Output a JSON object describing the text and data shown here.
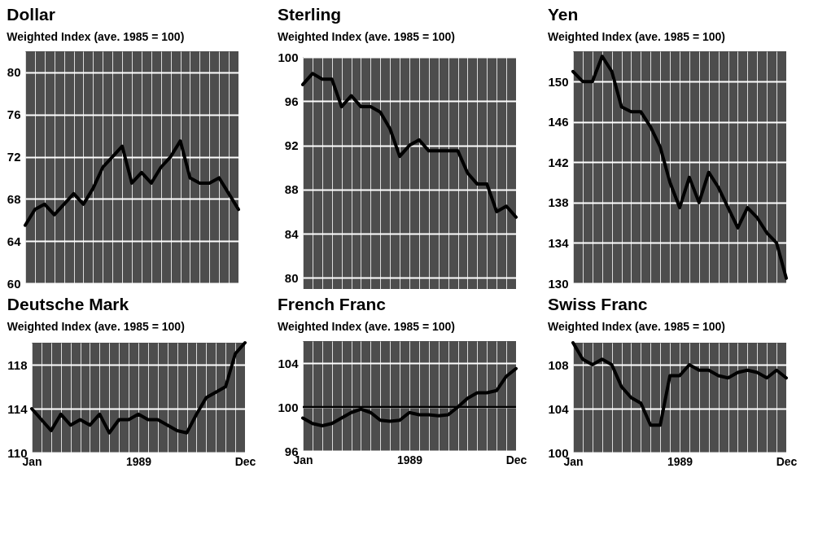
{
  "chart_data": [
    {
      "type": "line",
      "title": "Dollar",
      "subtitle": "Weighted Index (ave. 1985 = 100)",
      "categories": [
        null,
        null,
        null,
        null,
        null,
        null,
        null,
        null,
        null,
        null,
        null,
        null,
        null,
        null,
        null,
        null,
        null,
        null,
        null,
        null,
        null,
        null,
        null
      ],
      "series": [
        {
          "color": "#000000",
          "values": [
            65.5,
            67,
            67.5,
            66.5,
            67.5,
            68.5,
            67.5,
            69,
            71,
            72,
            73,
            69.5,
            70.5,
            69.5,
            71,
            72,
            73.5,
            70,
            69.5,
            69.5,
            70,
            68.5,
            67
          ]
        }
      ],
      "ylim": [
        60,
        82
      ],
      "yticks": [
        60,
        64,
        68,
        72,
        76,
        80
      ],
      "tick_labels": "y",
      "grid": true
    },
    {
      "type": "line",
      "title": "Sterling",
      "subtitle": "Weighted Index (ave. 1985 = 100)",
      "categories": [
        null,
        null,
        null,
        null,
        null,
        null,
        null,
        null,
        null,
        null,
        null,
        null,
        null,
        null,
        null,
        null,
        null,
        null,
        null,
        null,
        null,
        null,
        null
      ],
      "series": [
        {
          "color": "#000000",
          "values": [
            97.5,
            98.5,
            98,
            98,
            95.5,
            96.5,
            95.5,
            95.5,
            95,
            93.5,
            91,
            92,
            92.5,
            91.5,
            91.5,
            91.5,
            91.5,
            89.5,
            88.5,
            88.5,
            86,
            86.5,
            85.5
          ]
        }
      ],
      "ylim": [
        79,
        100
      ],
      "yticks": [
        80,
        84,
        88,
        92,
        96,
        100
      ],
      "tick_labels": "y",
      "grid": true
    },
    {
      "type": "line",
      "title": "Yen",
      "subtitle": "Weighted Index (ave. 1985 = 100)",
      "categories": [
        null,
        null,
        null,
        null,
        null,
        null,
        null,
        null,
        null,
        null,
        null,
        null,
        null,
        null,
        null,
        null,
        null,
        null,
        null,
        null,
        null,
        null,
        null
      ],
      "series": [
        {
          "color": "#000000",
          "values": [
            151,
            150,
            150,
            152.5,
            151,
            147.5,
            147,
            147,
            145.5,
            143.5,
            140,
            137.5,
            140.5,
            138,
            141,
            139.5,
            137.5,
            135.5,
            137.5,
            136.5,
            135,
            134,
            130.5
          ]
        }
      ],
      "ylim": [
        130,
        153
      ],
      "yticks": [
        130,
        134,
        138,
        142,
        146,
        150
      ],
      "tick_labels": "y",
      "grid": true
    },
    {
      "type": "line",
      "title": "Deutsche Mark",
      "subtitle": "Weighted Index (ave. 1985 = 100)",
      "categories": [
        "Jan",
        null,
        null,
        null,
        null,
        null,
        null,
        null,
        null,
        null,
        null,
        "1989",
        null,
        null,
        null,
        null,
        null,
        null,
        null,
        null,
        null,
        null,
        "Dec"
      ],
      "series": [
        {
          "color": "#000000",
          "values": [
            114,
            113,
            112,
            113.5,
            112.5,
            113,
            112.5,
            113.5,
            111.8,
            113,
            113,
            113.5,
            113,
            113,
            112.5,
            112,
            111.8,
            113.5,
            115,
            115.5,
            116,
            119,
            120
          ]
        }
      ],
      "ylim": [
        110,
        120
      ],
      "yticks": [
        110,
        114,
        118
      ],
      "grid": true
    },
    {
      "type": "line",
      "title": "French Franc",
      "subtitle": "Weighted Index (ave. 1985 = 100)",
      "categories": [
        "Jan",
        null,
        null,
        null,
        null,
        null,
        null,
        null,
        null,
        null,
        null,
        "1989",
        null,
        null,
        null,
        null,
        null,
        null,
        null,
        null,
        null,
        null,
        "Dec"
      ],
      "series": [
        {
          "color": "#000000",
          "values": [
            99,
            98.5,
            98.3,
            98.5,
            99,
            99.5,
            99.8,
            99.5,
            98.8,
            98.7,
            98.8,
            99.5,
            99.3,
            99.3,
            99.2,
            99.3,
            100,
            100.8,
            101.3,
            101.3,
            101.5,
            102.8,
            103.5
          ]
        }
      ],
      "ylim": [
        96,
        106
      ],
      "yticks": [
        96,
        100,
        104
      ],
      "grid": true,
      "ref_lines": [
        {
          "axis": "y",
          "value": 100,
          "color": "#000000"
        }
      ]
    },
    {
      "type": "line",
      "title": "Swiss Franc",
      "subtitle": "Weighted Index (ave. 1985 = 100)",
      "categories": [
        "Jan",
        null,
        null,
        null,
        null,
        null,
        null,
        null,
        null,
        null,
        null,
        "1989",
        null,
        null,
        null,
        null,
        null,
        null,
        null,
        null,
        null,
        null,
        "Dec"
      ],
      "series": [
        {
          "color": "#000000",
          "values": [
            110,
            108.5,
            108,
            108.5,
            108,
            106,
            105,
            104.5,
            102.5,
            102.5,
            107,
            107,
            108,
            107.5,
            107.5,
            107,
            106.8,
            107.3,
            107.5,
            107.3,
            106.8,
            107.5,
            106.8
          ]
        }
      ],
      "ylim": [
        100,
        110
      ],
      "yticks": [
        100,
        104,
        108
      ],
      "grid": true
    }
  ]
}
